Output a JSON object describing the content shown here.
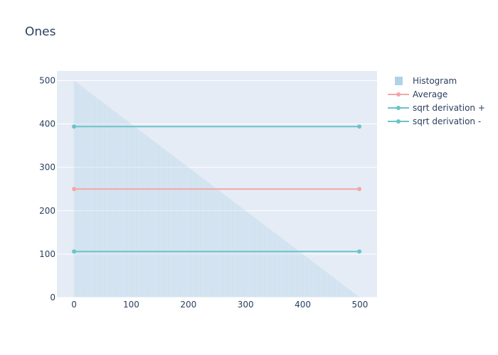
{
  "chart_data": {
    "type": "bar+line",
    "title": "Ones",
    "xlabel": "",
    "ylabel": "",
    "xlim": [
      -30,
      530
    ],
    "ylim": [
      0,
      522
    ],
    "xticks": [
      0,
      100,
      200,
      300,
      400,
      500
    ],
    "yticks": [
      0,
      100,
      200,
      300,
      400,
      500
    ],
    "grid": true,
    "legend_position": "top-right",
    "histogram": {
      "name": "Histogram",
      "color": "#a6cee3",
      "x_range": [
        0,
        499
      ],
      "description": "bar value at x",
      "values_formula": {
        "y_at_x0": 500,
        "y_at_x499": 1,
        "step": -1
      }
    },
    "series": [
      {
        "name": "Average",
        "type": "line",
        "color": "#f4a6a6",
        "x": [
          0,
          499
        ],
        "y": [
          250,
          250
        ]
      },
      {
        "name": "sqrt derivation +",
        "type": "line",
        "color": "#6cc3c9",
        "x": [
          0,
          499
        ],
        "y": [
          394,
          394
        ]
      },
      {
        "name": "sqrt derivation -",
        "type": "line",
        "color": "#6cc3c9",
        "x": [
          0,
          499
        ],
        "y": [
          106,
          106
        ]
      }
    ],
    "colors": {
      "plot_bg": "#e5ecf6",
      "grid": "#ffffff",
      "text": "#2a3f5f"
    }
  }
}
